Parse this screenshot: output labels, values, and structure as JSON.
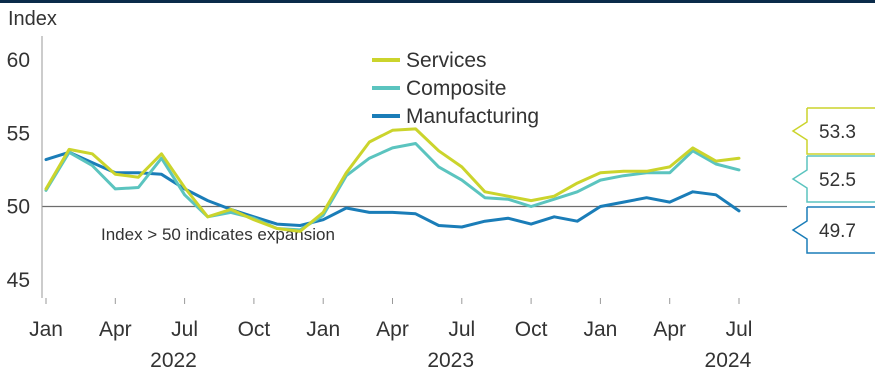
{
  "chart_data": {
    "type": "line",
    "ylabel": "Index",
    "ylim": [
      44,
      61
    ],
    "yticks": [
      45,
      50,
      55,
      60
    ],
    "x_months": [
      "2022-01",
      "2022-02",
      "2022-03",
      "2022-04",
      "2022-05",
      "2022-06",
      "2022-07",
      "2022-08",
      "2022-09",
      "2022-10",
      "2022-11",
      "2022-12",
      "2023-01",
      "2023-02",
      "2023-03",
      "2023-04",
      "2023-05",
      "2023-06",
      "2023-07",
      "2023-08",
      "2023-09",
      "2023-10",
      "2023-11",
      "2023-12",
      "2024-01",
      "2024-02",
      "2024-03",
      "2024-04",
      "2024-05",
      "2024-06",
      "2024-07"
    ],
    "x_tick_labels": [
      "Jan",
      "Apr",
      "Jul",
      "Oct",
      "Jan",
      "Apr",
      "Jul",
      "Oct",
      "Jan",
      "Apr",
      "Jul"
    ],
    "x_tick_months": [
      "2022-01",
      "2022-04",
      "2022-07",
      "2022-10",
      "2023-01",
      "2023-04",
      "2023-07",
      "2023-10",
      "2024-01",
      "2024-04",
      "2024-07"
    ],
    "year_labels": [
      {
        "label": "2022",
        "month": "2022-06"
      },
      {
        "label": "2023",
        "month": "2023-06"
      },
      {
        "label": "2024",
        "month": "2024-06"
      }
    ],
    "reference_line": {
      "y": 50,
      "text": "Index > 50 indicates expansion"
    },
    "series": [
      {
        "name": "Services",
        "color": "#cbd42c",
        "values": [
          51.2,
          53.9,
          53.6,
          52.2,
          52.0,
          53.6,
          51.3,
          49.3,
          49.8,
          49.1,
          48.5,
          48.3,
          49.6,
          52.3,
          54.4,
          55.2,
          55.3,
          53.8,
          52.7,
          51.0,
          50.7,
          50.4,
          50.7,
          51.6,
          52.3,
          52.4,
          52.4,
          52.7,
          54.0,
          53.1,
          53.3
        ],
        "end_label": "53.3"
      },
      {
        "name": "Composite",
        "color": "#5bc4bf",
        "values": [
          51.1,
          53.7,
          52.8,
          51.2,
          51.3,
          53.3,
          50.8,
          49.3,
          49.6,
          49.2,
          48.5,
          48.4,
          49.4,
          52.1,
          53.3,
          54.0,
          54.3,
          52.7,
          51.8,
          50.6,
          50.5,
          50.0,
          50.5,
          51.0,
          51.8,
          52.1,
          52.3,
          52.3,
          53.8,
          52.9,
          52.5
        ],
        "end_label": "52.5"
      },
      {
        "name": "Manufacturing",
        "color": "#1a7db8",
        "values": [
          53.2,
          53.7,
          53.0,
          52.3,
          52.3,
          52.2,
          51.2,
          50.4,
          49.8,
          49.3,
          48.8,
          48.7,
          49.1,
          49.9,
          49.6,
          49.6,
          49.5,
          48.7,
          48.6,
          49.0,
          49.2,
          48.8,
          49.3,
          49.0,
          50.0,
          50.3,
          50.6,
          50.3,
          51.0,
          50.8,
          49.7
        ],
        "end_label": "49.7"
      }
    ]
  }
}
